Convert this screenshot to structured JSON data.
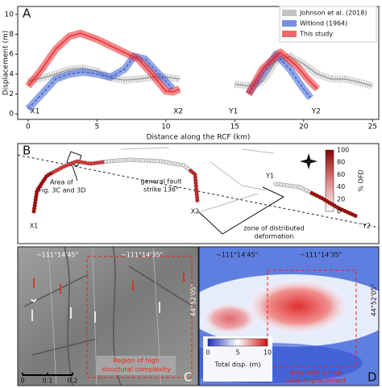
{
  "chart_data": {
    "type": "line",
    "panel_label": "A",
    "xlabel": "Distance along the RCF (km)",
    "ylabel": "Displacement (m)",
    "xlim": [
      -0.75,
      25.45
    ],
    "ylim": [
      -0.55,
      10.8
    ],
    "xticks": [
      0,
      5,
      10,
      15,
      20,
      25
    ],
    "yticks": [
      0,
      2,
      4,
      6,
      8,
      10
    ],
    "legend": "upper right",
    "annotations": [
      {
        "text": "X1",
        "x": 0.5
      },
      {
        "text": "X2",
        "x": 10.9
      },
      {
        "text": "Y1",
        "x": 14.9
      },
      {
        "text": "Y2",
        "x": 20.9
      }
    ],
    "series": [
      {
        "name": "Johnson et al. (2018)",
        "color": "#aaaaaa",
        "x": [
          0,
          1,
          2,
          3,
          4,
          5,
          6,
          7,
          8,
          9,
          10,
          11,
          13,
          15,
          16,
          17,
          18,
          19,
          20,
          21,
          22,
          23,
          24,
          25
        ],
        "values": [
          3.3,
          3.6,
          4.0,
          4.5,
          4.6,
          4.3,
          3.6,
          3.4,
          3.5,
          3.7,
          3.7,
          3.5,
          null,
          3.0,
          2.8,
          3.2,
          5.3,
          5.8,
          5.0,
          4.0,
          3.5,
          3.5,
          3.2,
          2.8
        ]
      },
      {
        "name": "Witkind (1964)",
        "color": "#3a5fd0",
        "x": [
          0,
          1,
          2,
          3,
          4,
          5,
          6,
          7,
          7.7,
          8.5,
          9.5,
          10.5,
          13,
          16,
          17,
          18,
          19,
          20,
          20.5
        ],
        "values": [
          0.5,
          2.0,
          3.5,
          4.0,
          4.2,
          4.0,
          3.7,
          4.5,
          5.8,
          5.5,
          4.0,
          2.5,
          null,
          2.0,
          4.0,
          6.0,
          4.5,
          2.5,
          1.6
        ]
      },
      {
        "name": "This study",
        "color": "#e8262a",
        "x": [
          0,
          1,
          2,
          3,
          3.8,
          5,
          6.5,
          8,
          9,
          10,
          10.5,
          11,
          13,
          16,
          17,
          18.3,
          19.5,
          20.3,
          21
        ],
        "values": [
          2.8,
          4.5,
          6.5,
          7.8,
          8.1,
          7.5,
          6.5,
          5.5,
          4.0,
          2.3,
          2.2,
          2.5,
          null,
          2.0,
          4.5,
          6.2,
          4.8,
          3.5,
          2.5
        ]
      }
    ]
  },
  "panels": {
    "b": {
      "label": "B",
      "area_note": [
        "Area of",
        "Fig. 3C and 3D"
      ],
      "strike_note": [
        "general fault",
        "strike 136°"
      ],
      "zone_note": [
        "zone of distributed",
        "deformation"
      ],
      "points": [
        "X1",
        "X2",
        "Y1",
        "Y2"
      ],
      "colorbar": {
        "label": "% OFD",
        "ticks": [
          "0",
          "20",
          "40",
          "60",
          "80",
          "100"
        ]
      }
    },
    "c": {
      "label": "C",
      "lon1": "−111°14'45\"",
      "lon2": "−111°14'35\"",
      "lat": "44°52'05\"",
      "note": [
        "Region of high",
        "structural complexity"
      ],
      "scale": [
        "0",
        "0.1",
        "0.2"
      ]
    },
    "d": {
      "label": "D",
      "lon1": "−111°14'45\"",
      "lon2": "−111°14'35\"",
      "lat": "44°52'05\"",
      "note": [
        "Area with a high",
        "total displacement"
      ],
      "colorbar": {
        "label": "Total disp. (m)",
        "ticks": [
          "0",
          "5",
          "10"
        ]
      }
    }
  }
}
